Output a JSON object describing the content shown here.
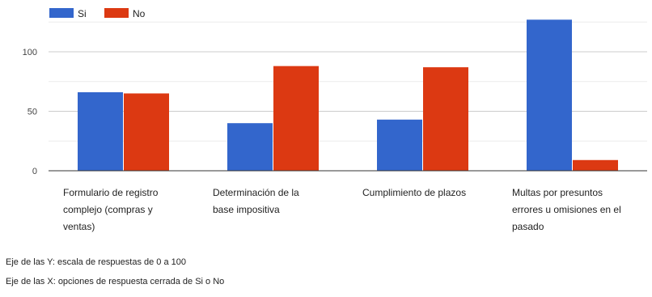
{
  "chart_data": {
    "type": "bar",
    "categories": [
      [
        "Formulario de registro",
        "complejo (compras y",
        "ventas)"
      ],
      [
        "Determinación de la",
        "base impositiva"
      ],
      [
        "Cumplimiento de plazos"
      ],
      [
        "Multas por presuntos",
        "errores u omisiones en el",
        "pasado"
      ]
    ],
    "series": [
      {
        "name": "Si",
        "color": "#3366cc",
        "values": [
          66,
          40,
          43,
          127
        ]
      },
      {
        "name": "No",
        "color": "#dc3912",
        "values": [
          65,
          88,
          87,
          9
        ]
      }
    ],
    "yticks": [
      0,
      50,
      100
    ],
    "ylim": [
      0,
      130
    ],
    "grid": true,
    "legend_position": "top-left"
  },
  "notes": {
    "y_axis": "Eje de las Y: escala de respuestas de 0 a 100",
    "x_axis": "Eje de las X: opciones de respuesta cerrada de Si o No"
  }
}
